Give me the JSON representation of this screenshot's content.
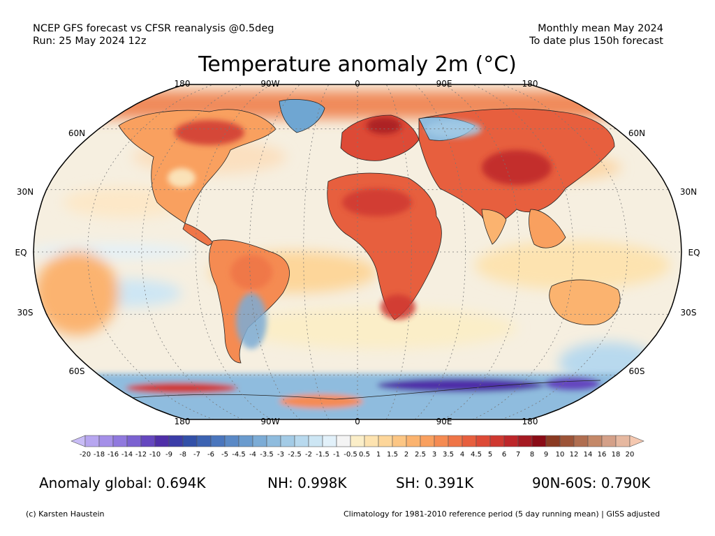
{
  "header": {
    "line1_left": "NCEP GFS forecast vs CFSR reanalysis @0.5deg",
    "line2_left": "Run: 25 May 2024 12z",
    "line1_right": "Monthly mean May 2024",
    "line2_right": "To date plus 150h forecast",
    "title": "Temperature anomaly 2m (°C)"
  },
  "map": {
    "projection": "robinson",
    "lon_labels": [
      "180",
      "90W",
      "0",
      "90E",
      "180"
    ],
    "lat_labels": [
      "60N",
      "30N",
      "EQ",
      "30S",
      "60S"
    ]
  },
  "colorbar": {
    "ticks": [
      "-20",
      "-18",
      "-16",
      "-14",
      "-12",
      "-10",
      "-9",
      "-8",
      "-7",
      "-6",
      "-5",
      "-4.5",
      "-4",
      "-3.5",
      "-3",
      "-2.5",
      "-2",
      "-1.5",
      "-1",
      "-0.5",
      "0.5",
      "1",
      "1.5",
      "2",
      "2.5",
      "3",
      "3.5",
      "4",
      "4.5",
      "5",
      "6",
      "7",
      "8",
      "9",
      "10",
      "12",
      "14",
      "16",
      "18",
      "20"
    ],
    "colors": [
      "#c8bcf6",
      "#b7a6f0",
      "#a48fe8",
      "#9079de",
      "#7b62d1",
      "#6547bf",
      "#4f2fa8",
      "#3b3da8",
      "#3250a8",
      "#3c63b2",
      "#4a76bd",
      "#5a89c6",
      "#6a9bce",
      "#7cacd6",
      "#8fbcde",
      "#a3cbe6",
      "#b8d9ee",
      "#cde6f4",
      "#e2f1fa",
      "#f4f4f4",
      "#fbeec8",
      "#fde3b0",
      "#fdd69a",
      "#fcc684",
      "#fbb36f",
      "#f9a05f",
      "#f58b52",
      "#ef7547",
      "#e75f3e",
      "#dd4a36",
      "#cf3830",
      "#bd262a",
      "#a51a22",
      "#8a0c16",
      "#8a3a22",
      "#9c5438",
      "#b06e50",
      "#c48868",
      "#d4a088",
      "#e6b8a0",
      "#f5c8b0"
    ]
  },
  "stats": {
    "global": "Anomaly global: 0.694K",
    "nh": "NH: 0.998K",
    "sh": "SH: 0.391K",
    "arctic": "90N-60S: 0.790K"
  },
  "footer": {
    "copyright": "(c) Karsten Haustein",
    "note": "Climatology for 1981-2010 reference period (5 day running mean) | GISS adjusted"
  },
  "colors": {
    "ocean_base": "#f6efe0",
    "land_warm": "#f08a5a",
    "land_hot": "#c8302b",
    "cold": "#6fa6d2",
    "deep_cold": "#5540b8"
  }
}
